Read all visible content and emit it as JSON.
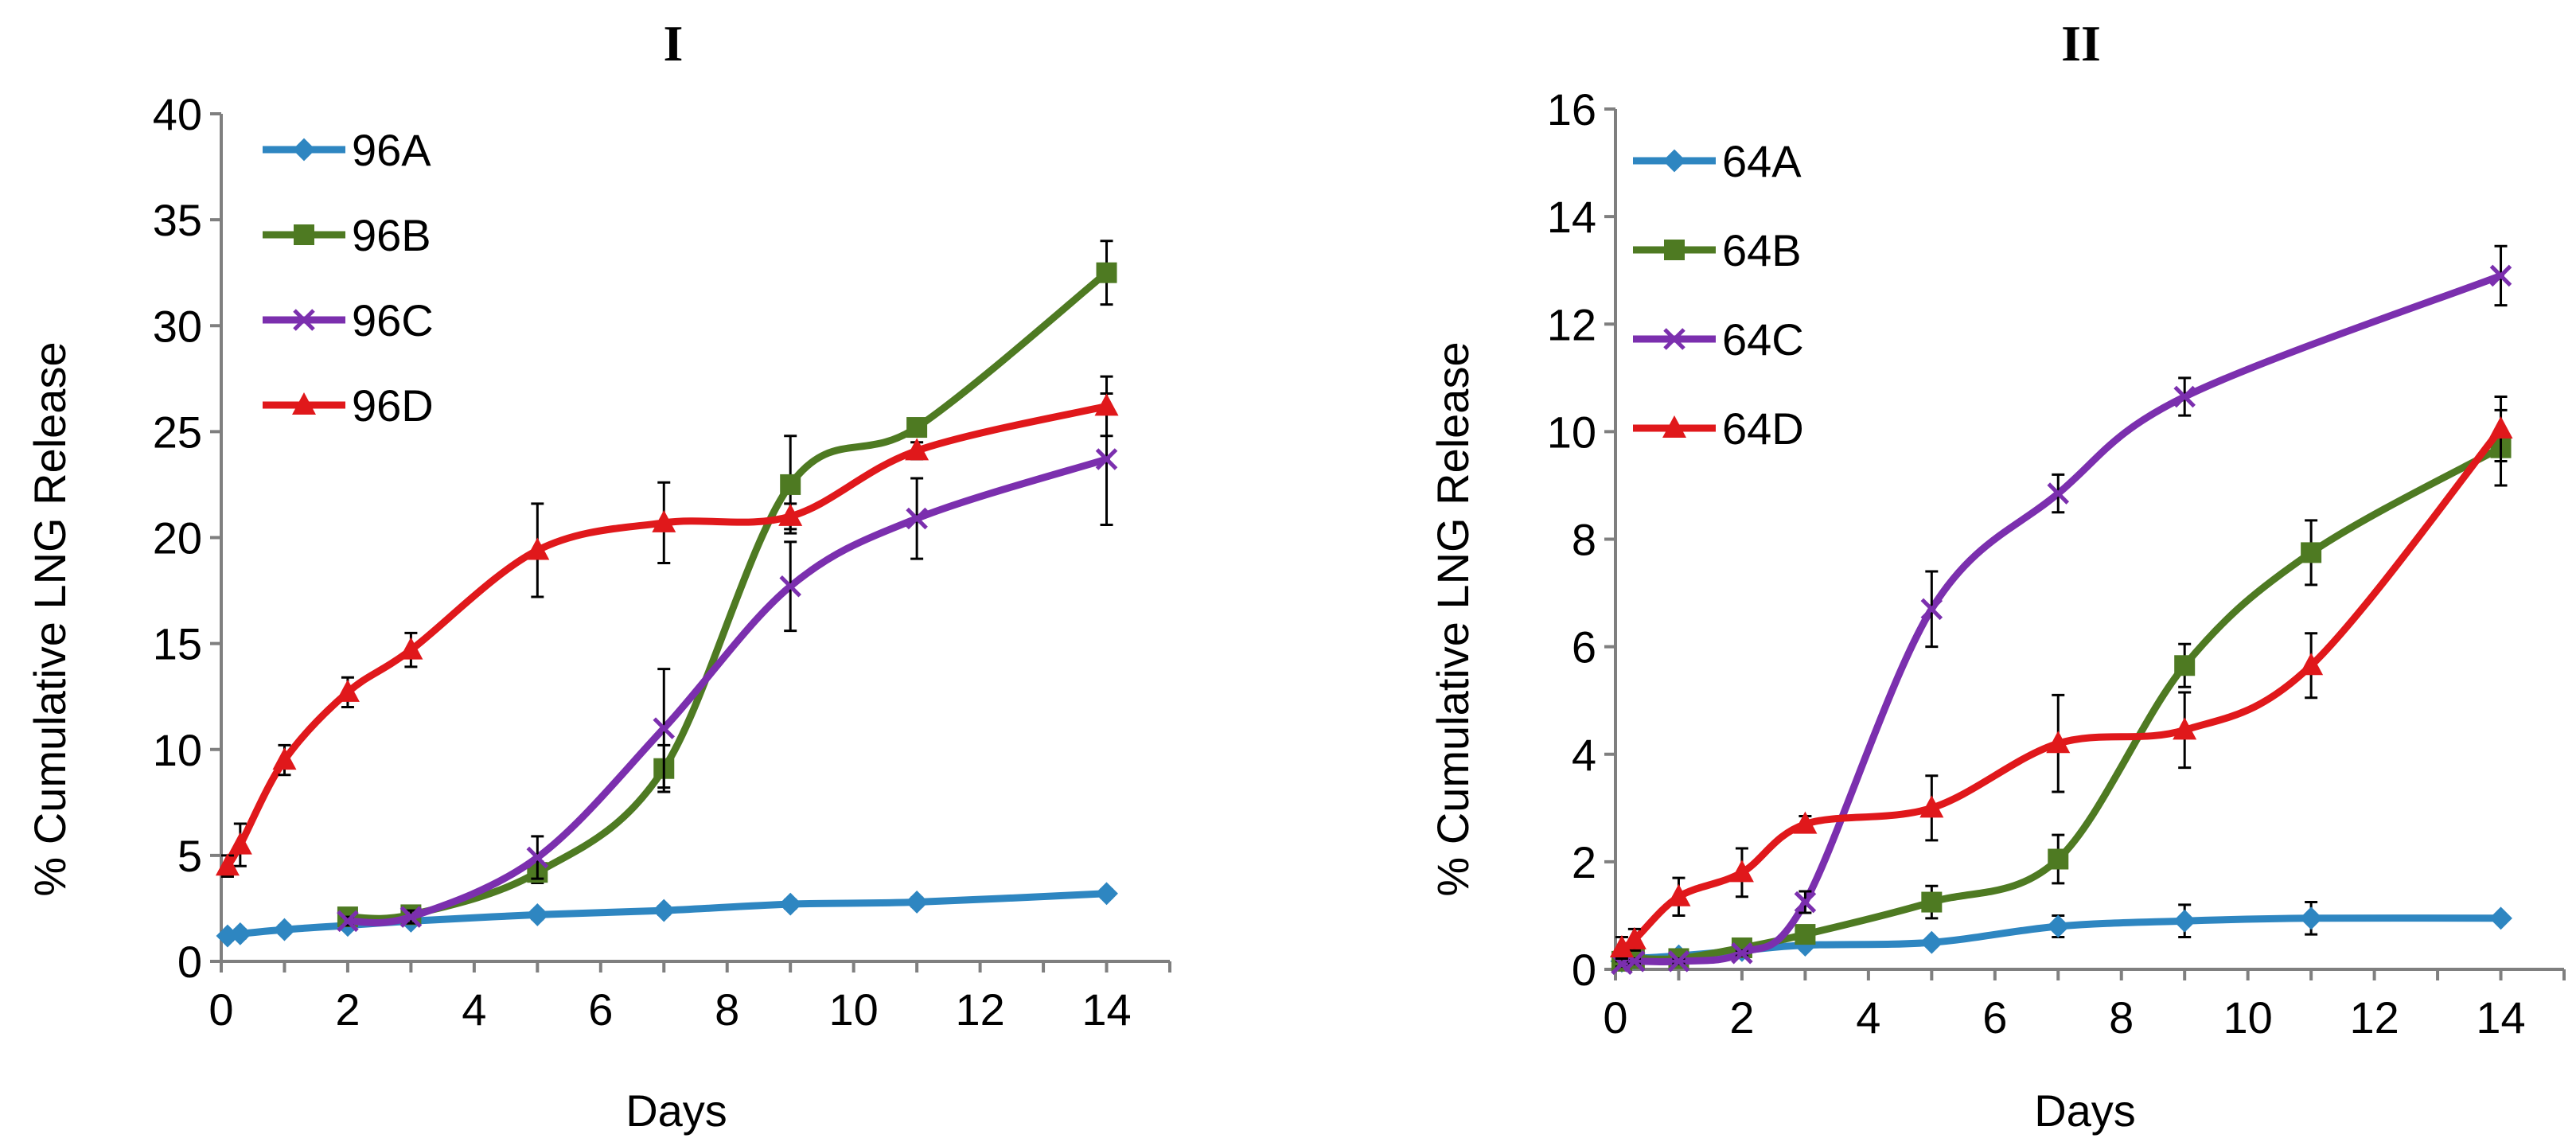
{
  "chart_data": [
    {
      "type": "line",
      "title": "I",
      "xlabel": "Days",
      "ylabel": "% Cumulative LNG Release",
      "xlim": [
        0,
        15
      ],
      "ylim": [
        0,
        40
      ],
      "x_ticks": [
        0,
        2,
        4,
        6,
        8,
        10,
        12,
        14
      ],
      "y_ticks": [
        0,
        5,
        10,
        15,
        20,
        25,
        30,
        35,
        40
      ],
      "grid": false,
      "legend_position": "top-left",
      "series": [
        {
          "name": "96A",
          "color": "#2e86c1",
          "marker": "diamond",
          "x": [
            0.1,
            0.3,
            1,
            2,
            3,
            5,
            7,
            9,
            11,
            14
          ],
          "y": [
            1.2,
            1.3,
            1.5,
            1.7,
            1.9,
            2.2,
            2.4,
            2.7,
            2.8,
            3.2
          ],
          "err": [
            0.2,
            0.2,
            0.2,
            0.2,
            0.2,
            0.2,
            0.2,
            0.2,
            0.2,
            0.2
          ]
        },
        {
          "name": "96B",
          "color": "#4e7a22",
          "marker": "square",
          "x": [
            2,
            3,
            5,
            7,
            9,
            11,
            14
          ],
          "y": [
            2.1,
            2.2,
            4.2,
            9.1,
            22.5,
            25.2,
            32.5
          ],
          "err": [
            0.3,
            0.3,
            0.5,
            1.1,
            2.3,
            0.3,
            1.5
          ]
        },
        {
          "name": "96C",
          "color": "#7b2fae",
          "marker": "x",
          "x": [
            2,
            3,
            5,
            7,
            9,
            11,
            14
          ],
          "y": [
            1.9,
            2.1,
            4.9,
            11.0,
            17.7,
            20.9,
            23.7
          ],
          "err": [
            0.2,
            0.3,
            1.0,
            2.8,
            2.1,
            1.9,
            3.1
          ]
        },
        {
          "name": "96D",
          "color": "#e0181b",
          "marker": "triangle",
          "x": [
            0.1,
            0.3,
            1,
            2,
            3,
            5,
            7,
            9,
            11,
            14
          ],
          "y": [
            4.5,
            5.5,
            9.5,
            12.7,
            14.7,
            19.4,
            20.7,
            21.0,
            24.1,
            26.2
          ],
          "err": [
            0.5,
            1.0,
            0.7,
            0.7,
            0.8,
            2.2,
            1.9,
            0.6,
            0.4,
            1.4
          ]
        }
      ]
    },
    {
      "type": "line",
      "title": "II",
      "xlabel": "Days",
      "ylabel": "% Cumulative LNG Release",
      "xlim": [
        0,
        15
      ],
      "ylim": [
        0,
        16
      ],
      "x_ticks": [
        0,
        2,
        4,
        6,
        8,
        10,
        12,
        14
      ],
      "y_ticks": [
        0,
        2,
        4,
        6,
        8,
        10,
        12,
        14,
        16
      ],
      "grid": false,
      "legend_position": "top-left",
      "series": [
        {
          "name": "64A",
          "color": "#2e86c1",
          "marker": "diamond",
          "x": [
            0.1,
            0.3,
            1,
            2,
            3,
            5,
            7,
            9,
            11,
            14
          ],
          "y": [
            0.15,
            0.2,
            0.25,
            0.35,
            0.45,
            0.5,
            0.8,
            0.9,
            0.95,
            0.95
          ],
          "err": [
            0.05,
            0.05,
            0.05,
            0.05,
            0.05,
            0.05,
            0.2,
            0.3,
            0.3,
            0.05
          ]
        },
        {
          "name": "64B",
          "color": "#4e7a22",
          "marker": "square",
          "x": [
            0.1,
            0.3,
            1,
            2,
            3,
            5,
            7,
            9,
            11,
            14
          ],
          "y": [
            0.15,
            0.2,
            0.2,
            0.4,
            0.65,
            1.25,
            2.05,
            5.65,
            7.75,
            9.7
          ],
          "err": [
            0.05,
            0.05,
            0.05,
            0.1,
            0.1,
            0.3,
            0.45,
            0.4,
            0.6,
            0.7
          ]
        },
        {
          "name": "64C",
          "color": "#7b2fae",
          "marker": "x",
          "x": [
            0.1,
            0.3,
            1,
            2,
            3,
            5,
            7,
            9,
            14
          ],
          "y": [
            0.1,
            0.15,
            0.15,
            0.3,
            1.25,
            6.7,
            8.85,
            10.65,
            12.9
          ],
          "err": [
            0.05,
            0.05,
            0.05,
            0.05,
            0.2,
            0.7,
            0.35,
            0.35,
            0.55
          ]
        },
        {
          "name": "64D",
          "color": "#e0181b",
          "marker": "triangle",
          "x": [
            0.1,
            0.3,
            1,
            2,
            3,
            5,
            7,
            9,
            11,
            14
          ],
          "y": [
            0.4,
            0.55,
            1.35,
            1.8,
            2.7,
            3.0,
            4.2,
            4.45,
            5.65,
            10.05
          ],
          "err": [
            0.2,
            0.2,
            0.35,
            0.45,
            0.15,
            0.6,
            0.9,
            0.7,
            0.6,
            0.6
          ]
        }
      ]
    }
  ]
}
